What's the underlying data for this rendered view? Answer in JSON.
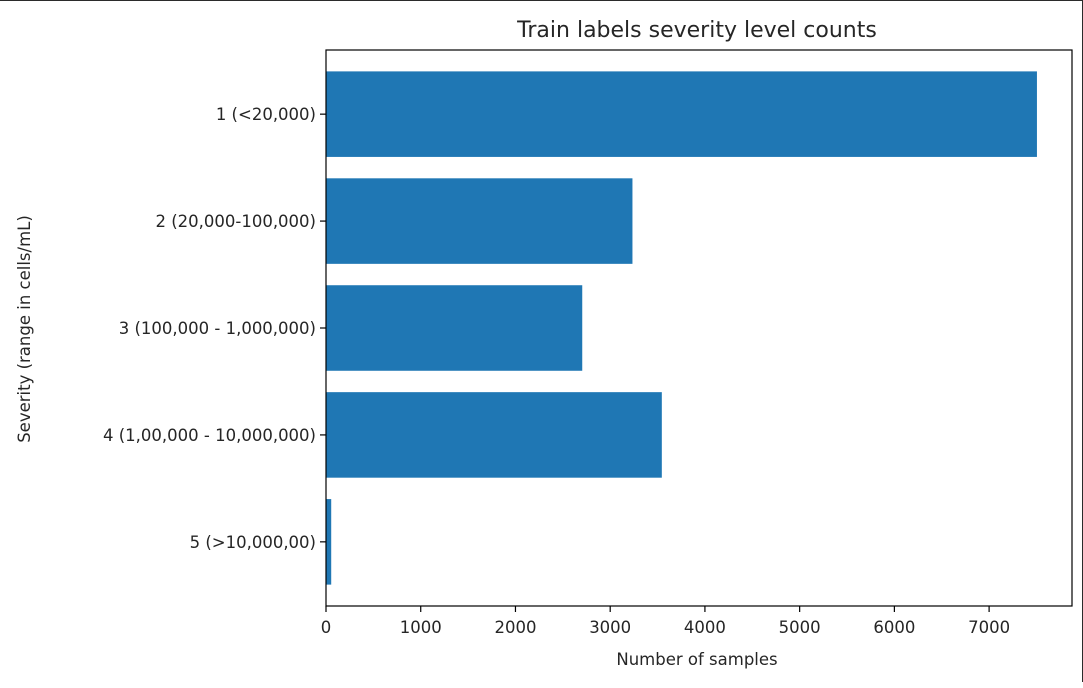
{
  "chart_data": {
    "type": "bar",
    "orientation": "horizontal",
    "title": "Train labels severity level counts",
    "xlabel": "Number of samples",
    "ylabel": "Severity (range in cells/mL)",
    "categories": [
      "1 (<20,000)",
      "2 (20,000-100,000)",
      "3 (100,000 - 1,000,000)",
      "4 (1,00,000 - 10,000,000)",
      "5 (>10,000,00)"
    ],
    "values": [
      7505,
      3235,
      2705,
      3545,
      55
    ],
    "xlim": [
      0,
      7875
    ],
    "xticks": [
      0,
      1000,
      2000,
      3000,
      4000,
      5000,
      6000,
      7000
    ],
    "bar_color": "#1f77b4",
    "grid": false,
    "legend": "none"
  }
}
